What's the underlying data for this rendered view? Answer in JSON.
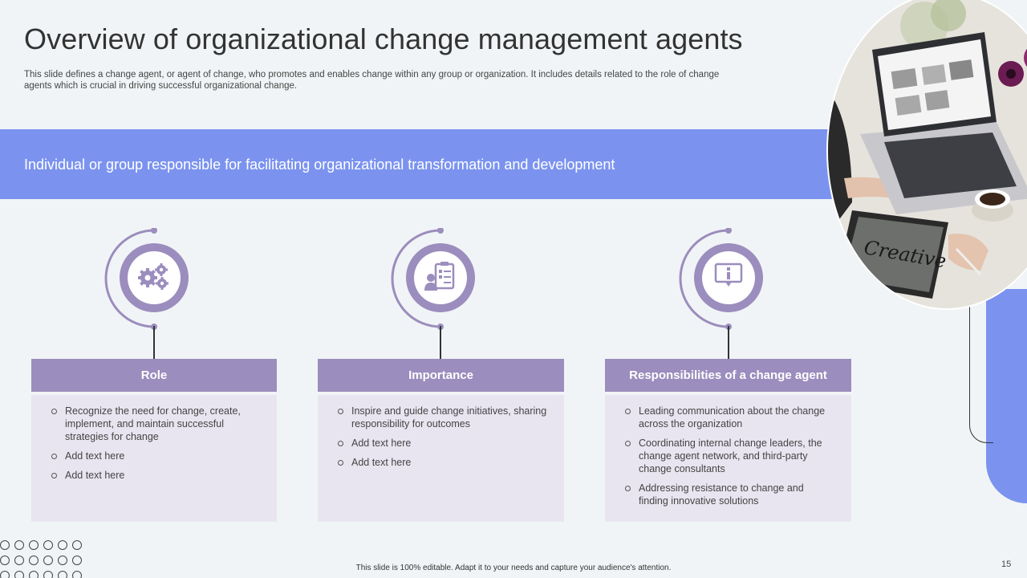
{
  "slide": {
    "title": "Overview of organizational change management agents",
    "subtitle": "This slide defines a change agent, or agent of change, who promotes and enables change within any group or organization. It includes details related to the role of change agents which is crucial in driving successful organizational change.",
    "banner": "Individual or group responsible for facilitating organizational transformation and development",
    "footer": "This slide is 100% editable. Adapt it to your needs and capture your audience's attention.",
    "page_number": "15"
  },
  "photo": {
    "screen_text": "Creative",
    "icon": "laptop-tablet-photo"
  },
  "cards": [
    {
      "icon": "gears-icon",
      "heading": "Role",
      "bullets": [
        "Recognize the need for change, create, implement, and maintain successful strategies for change",
        "Add  text here",
        "Add text here"
      ]
    },
    {
      "icon": "clipboard-person-icon",
      "heading": "Importance",
      "bullets": [
        "Inspire and guide change initiatives, sharing responsibility for outcomes",
        "Add text here",
        "Add text here"
      ]
    },
    {
      "icon": "info-sign-icon",
      "heading": "Responsibilities of a change agent",
      "bullets": [
        "Leading communication about the change across the organization",
        "Coordinating internal change leaders, the change agent network, and third-party change consultants",
        "Addressing resistance to change and finding innovative solutions"
      ]
    }
  ],
  "colors": {
    "accent_blue": "#7b93ef",
    "accent_purple": "#9b8dbd",
    "card_body": "#e8e5f0",
    "background": "#f1f4f6"
  }
}
